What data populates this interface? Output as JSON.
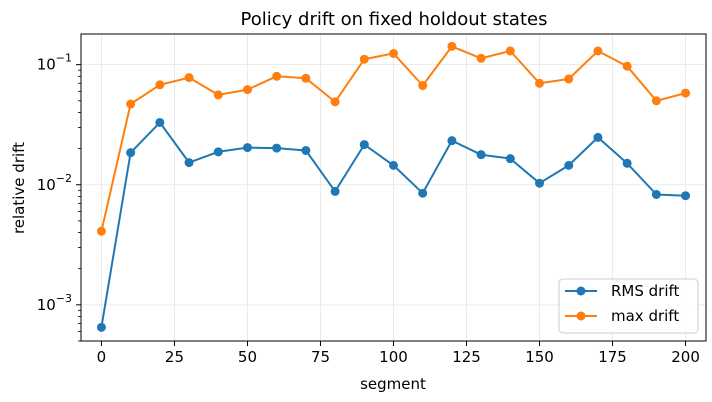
{
  "chart_data": {
    "type": "line",
    "title": "Policy drift on fixed holdout states",
    "xlabel": "segment",
    "ylabel": "relative drift",
    "yscale": "log",
    "xlim": [
      -7,
      207
    ],
    "ylim": [
      0.0005,
      0.18
    ],
    "x_ticks": [
      0,
      25,
      50,
      75,
      100,
      125,
      150,
      175,
      200
    ],
    "y_ticks": [
      {
        "value": 0.001,
        "base": "10",
        "exp": "−3"
      },
      {
        "value": 0.01,
        "base": "10",
        "exp": "−2"
      },
      {
        "value": 0.1,
        "base": "10",
        "exp": "−1"
      }
    ],
    "grid": true,
    "legend_position": "lower-right",
    "x": [
      0,
      10,
      20,
      30,
      40,
      50,
      60,
      70,
      80,
      90,
      100,
      110,
      120,
      130,
      140,
      150,
      160,
      170,
      180,
      190,
      200
    ],
    "series": [
      {
        "name": "RMS drift",
        "color": "#1f77b4",
        "values": [
          0.00065,
          0.0185,
          0.033,
          0.0153,
          0.0188,
          0.0204,
          0.0202,
          0.0193,
          0.0088,
          0.0216,
          0.0145,
          0.0085,
          0.0233,
          0.0178,
          0.0165,
          0.0103,
          0.0145,
          0.0248,
          0.0151,
          0.0083,
          0.0081
        ]
      },
      {
        "name": "max drift",
        "color": "#ff7f0e",
        "values": [
          0.0041,
          0.047,
          0.068,
          0.078,
          0.056,
          0.062,
          0.08,
          0.077,
          0.049,
          0.111,
          0.124,
          0.067,
          0.142,
          0.113,
          0.13,
          0.07,
          0.076,
          0.13,
          0.097,
          0.05,
          0.058
        ]
      }
    ]
  }
}
